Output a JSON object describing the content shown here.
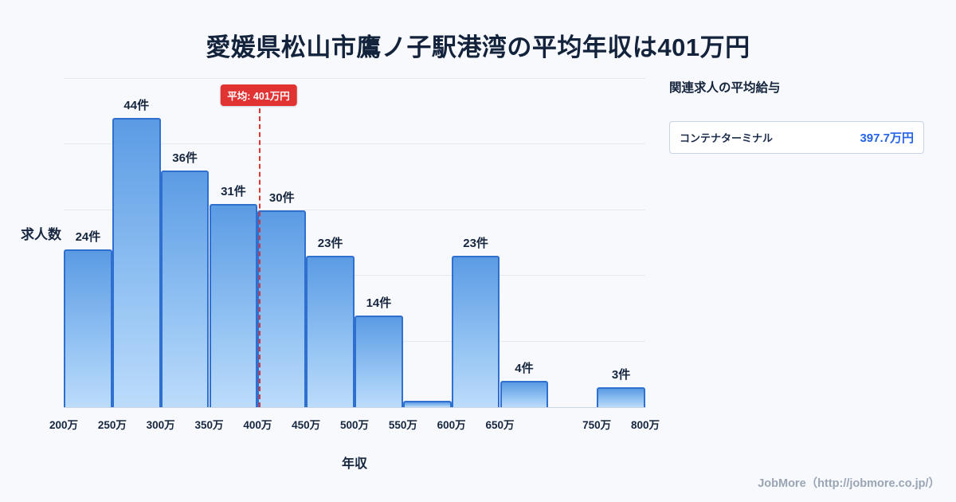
{
  "page": {
    "title": "愛媛県松山市鷹ノ子駅港湾の平均年収は401万円",
    "footer": "JobMore（http://jobmore.co.jp/）"
  },
  "chart_data": {
    "type": "bar",
    "title": "愛媛県松山市鷹ノ子駅港湾の平均年収は401万円",
    "xlabel": "年収",
    "ylabel": "求人数",
    "x_range": [
      200,
      800
    ],
    "ylim": [
      0,
      50
    ],
    "grid": true,
    "bin_width": 50,
    "bins": [
      {
        "x0": 200,
        "range": "200万-250万",
        "count": 24,
        "label": "24件"
      },
      {
        "x0": 250,
        "range": "250万-300万",
        "count": 44,
        "label": "44件"
      },
      {
        "x0": 300,
        "range": "300万-350万",
        "count": 36,
        "label": "36件"
      },
      {
        "x0": 350,
        "range": "350万-400万",
        "count": 31,
        "label": "31件"
      },
      {
        "x0": 400,
        "range": "400万-450万",
        "count": 30,
        "label": "30件"
      },
      {
        "x0": 450,
        "range": "450万-500万",
        "count": 23,
        "label": "23件"
      },
      {
        "x0": 500,
        "range": "500万-550万",
        "count": 14,
        "label": "14件"
      },
      {
        "x0": 550,
        "range": "550万-600万",
        "count": 1,
        "label": ""
      },
      {
        "x0": 600,
        "range": "600万-650万",
        "count": 23,
        "label": "23件"
      },
      {
        "x0": 650,
        "range": "650万-700万",
        "count": 4,
        "label": "4件"
      },
      {
        "x0": 750,
        "range": "750万-800万",
        "count": 3,
        "label": "3件"
      }
    ],
    "x_ticks": [
      {
        "value": 200,
        "label": "200万"
      },
      {
        "value": 250,
        "label": "250万"
      },
      {
        "value": 300,
        "label": "300万"
      },
      {
        "value": 350,
        "label": "350万"
      },
      {
        "value": 400,
        "label": "400万"
      },
      {
        "value": 450,
        "label": "450万"
      },
      {
        "value": 500,
        "label": "500万"
      },
      {
        "value": 550,
        "label": "550万"
      },
      {
        "value": 600,
        "label": "600万"
      },
      {
        "value": 650,
        "label": "650万"
      },
      {
        "value": 750,
        "label": "750万"
      },
      {
        "value": 800,
        "label": "800万"
      }
    ],
    "average": {
      "value": 401,
      "label": "平均: 401万円"
    },
    "colors": {
      "bar_top": "#5b9be4",
      "bar_bottom": "#bcdcfb",
      "bar_border": "#2f6fd0",
      "average_line": "#e23333",
      "title_text": "#14233c",
      "value_accent": "#2563eb"
    }
  },
  "side_panel": {
    "title": "関連求人の平均給与",
    "rows": [
      {
        "name": "コンテナターミナル",
        "value": "397.7万円"
      }
    ]
  }
}
